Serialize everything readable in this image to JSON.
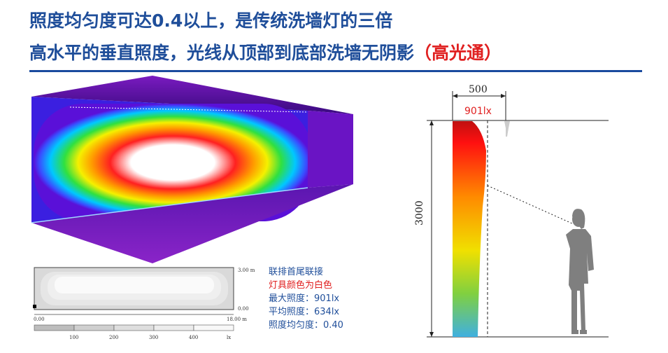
{
  "header": {
    "line1": "照度均匀度可达0.4以上，是传统洗墙灯的三倍",
    "line2_main": "高水平的垂直照度，光线从顶部到底部洗墙无阴影",
    "line2_highlight": "（高光通）"
  },
  "isoline_plot": {
    "top_right_label": "3.00 m",
    "bottom_right_label": "0.00",
    "scale_left": "0.00",
    "scale_right": "18.00 m",
    "scale_ticks": [
      "100",
      "200",
      "300",
      "400",
      "lx"
    ]
  },
  "legend": {
    "line1": "联排首尾联接",
    "line2": "灯具颜色为白色",
    "line3": "最大照度：901lx",
    "line4": "平均照度：634lx",
    "line5": "照度均匀度：0.40"
  },
  "section_diagram": {
    "width_label": "500",
    "max_label": "901lx",
    "height_label": "3000"
  },
  "colors": {
    "title": "#1f4e9a",
    "highlight": "#e02020",
    "rule": "#1a4a9e"
  }
}
